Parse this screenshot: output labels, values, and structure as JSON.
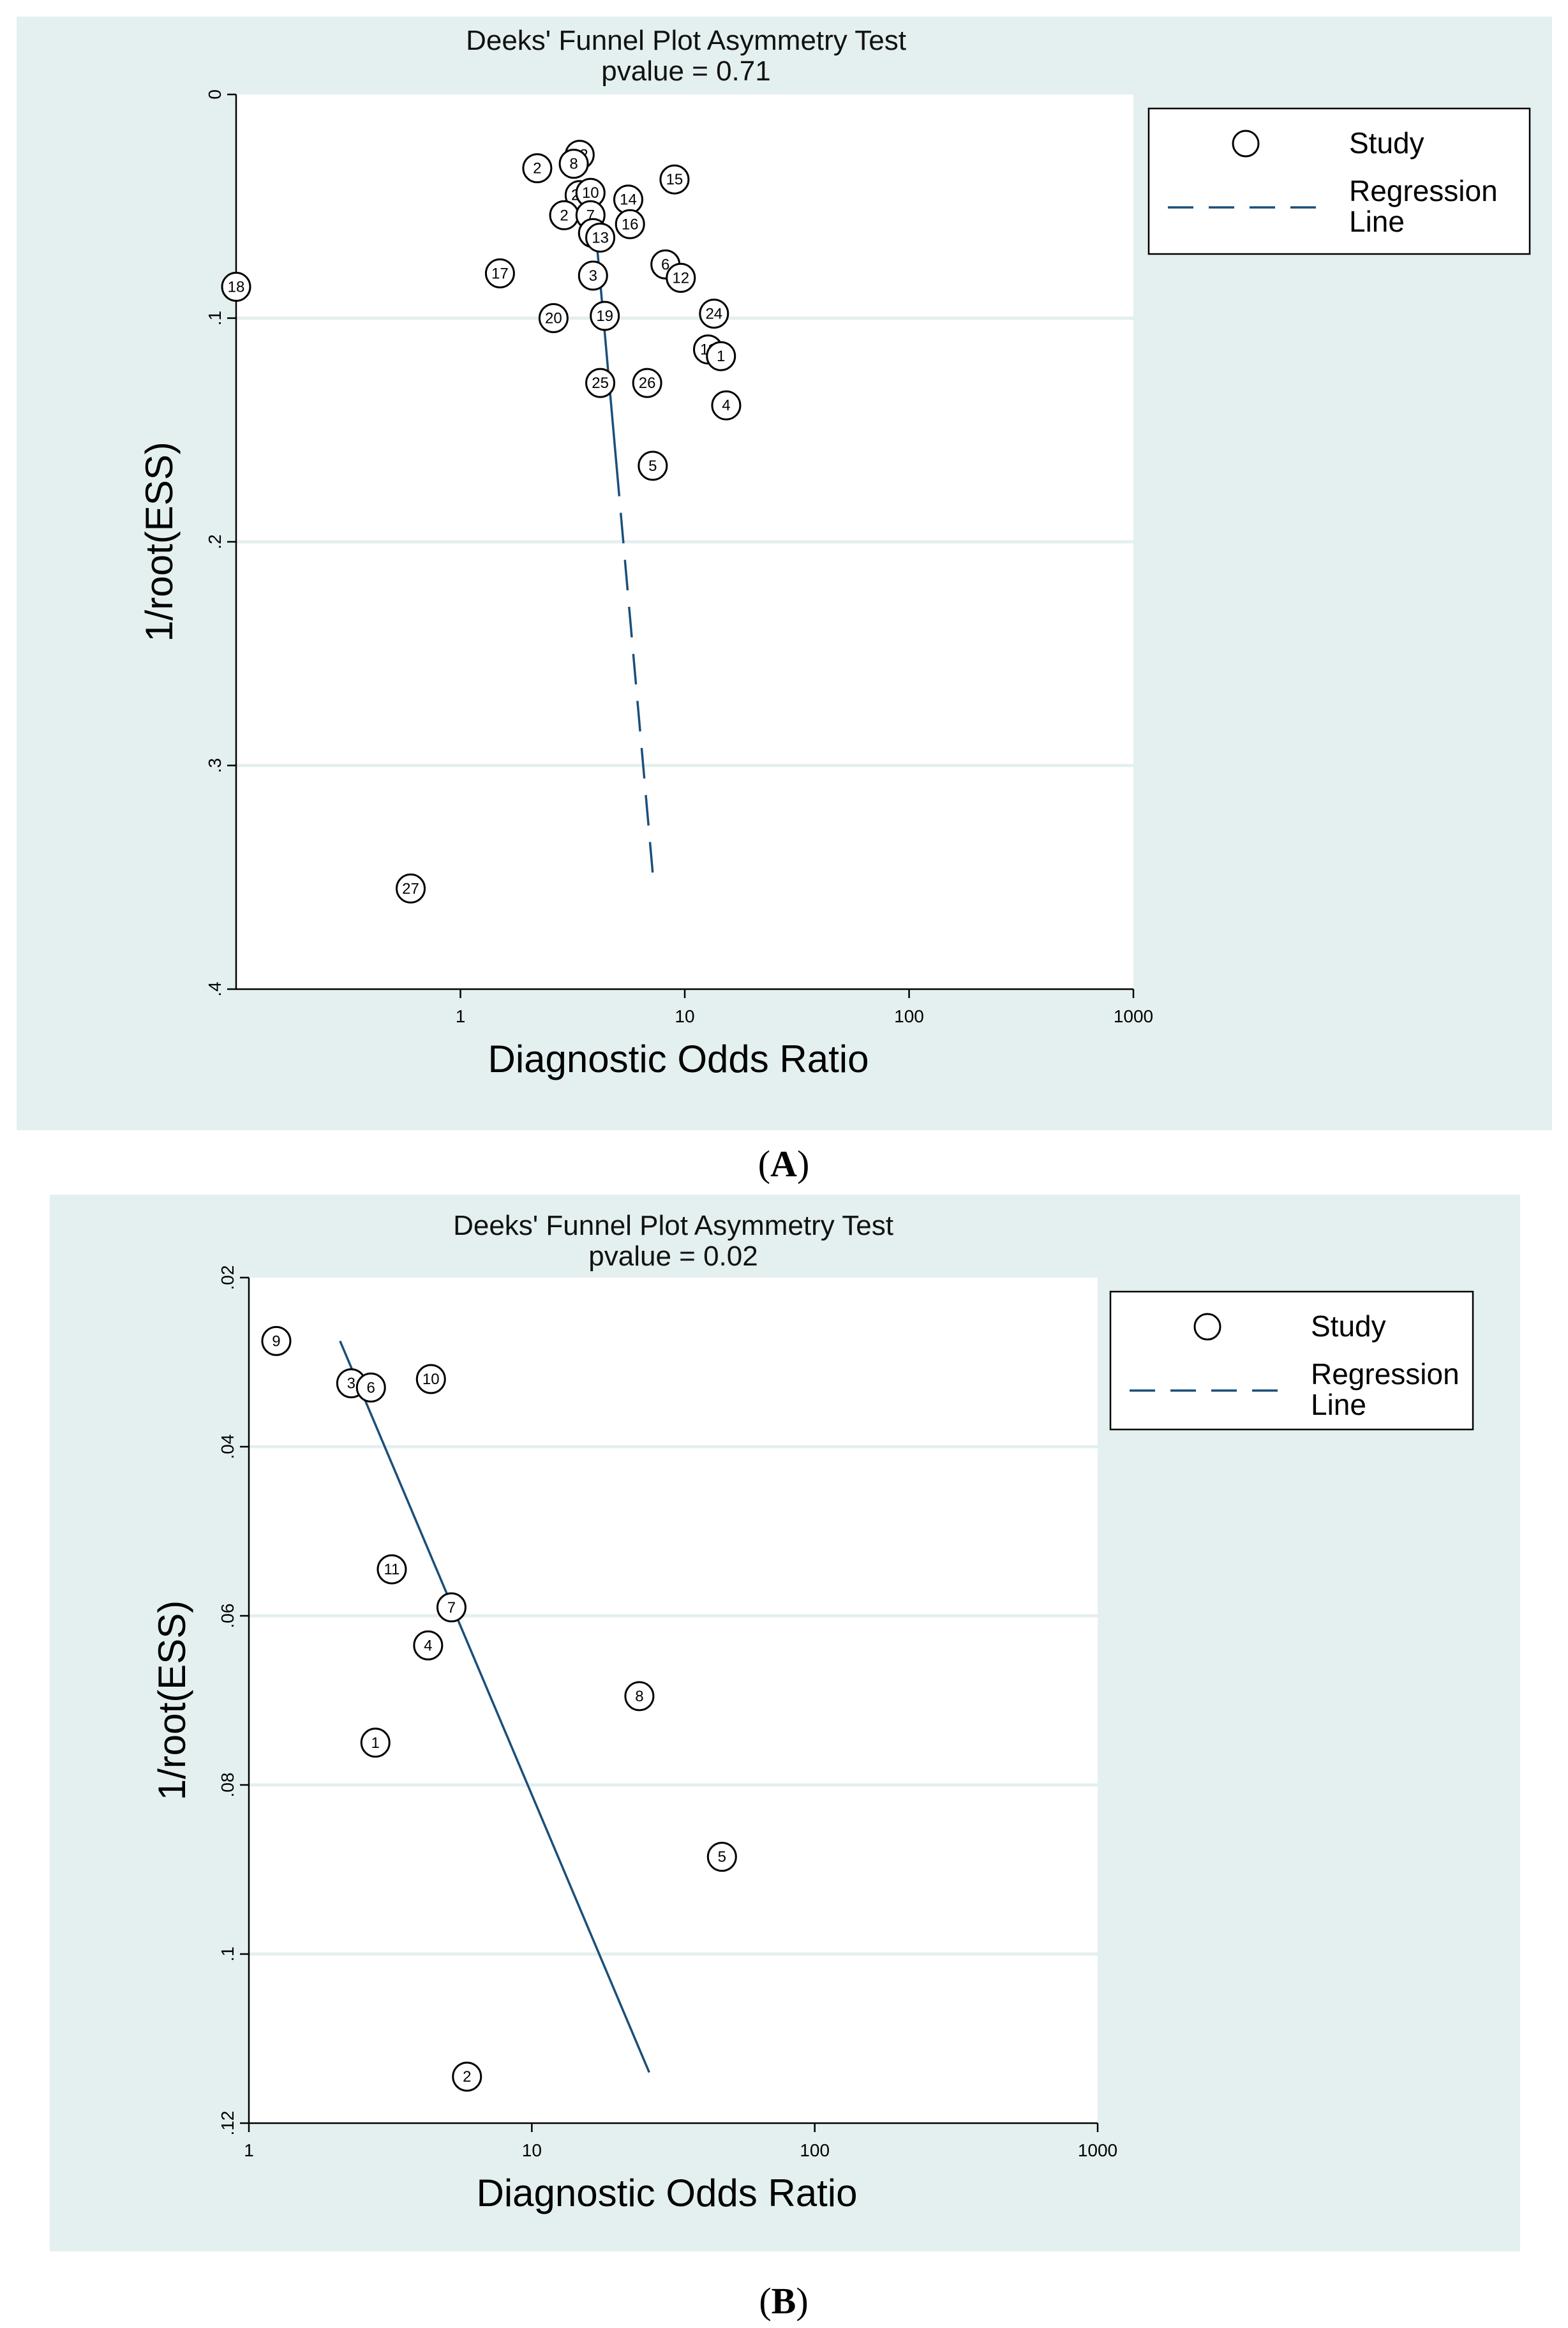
{
  "chart_data": [
    {
      "type": "scatter",
      "panel_label": "A",
      "title": "Deeks' Funnel Plot Asymmetry Test",
      "subtitle_prefix": "pvalue  =",
      "pvalue": "0.71",
      "xlabel": "Diagnostic Odds Ratio",
      "ylabel": "1/root(ESS)",
      "x_scale": "log",
      "xlim": [
        0.1,
        1000
      ],
      "ylim": [
        0,
        0.4
      ],
      "y_inverted": true,
      "x_ticks": [
        {
          "v": 1,
          "label": "1"
        },
        {
          "v": 10,
          "label": "10"
        },
        {
          "v": 100,
          "label": "100"
        },
        {
          "v": 1000,
          "label": "1000"
        }
      ],
      "y_ticks": [
        {
          "v": 0,
          "label": "0"
        },
        {
          "v": 0.1,
          "label": ".1"
        },
        {
          "v": 0.2,
          "label": ".2"
        },
        {
          "v": 0.3,
          "label": ".3"
        },
        {
          "v": 0.4,
          "label": ".4"
        }
      ],
      "gridlines_y": [
        0.1,
        0.2,
        0.3
      ],
      "legend": {
        "position": "top-right",
        "entries": [
          "Study",
          "Regression Line"
        ],
        "study_label": "Study",
        "line_label_1": "Regression",
        "line_label_2": "Line"
      },
      "points": [
        {
          "label": "18",
          "x": 0.1,
          "y": 0.086
        },
        {
          "label": "2",
          "x": 2.2,
          "y": 0.033
        },
        {
          "label": "22",
          "x": 3.4,
          "y": 0.027
        },
        {
          "label": "8",
          "x": 3.2,
          "y": 0.031
        },
        {
          "label": "21",
          "x": 3.4,
          "y": 0.045
        },
        {
          "label": "10",
          "x": 3.8,
          "y": 0.044
        },
        {
          "label": "2",
          "x": 2.9,
          "y": 0.054
        },
        {
          "label": "7",
          "x": 3.8,
          "y": 0.054
        },
        {
          "label": "15",
          "x": 9.0,
          "y": 0.038
        },
        {
          "label": "14",
          "x": 5.6,
          "y": 0.047
        },
        {
          "label": "16",
          "x": 5.7,
          "y": 0.058
        },
        {
          "label": "9",
          "x": 3.9,
          "y": 0.062
        },
        {
          "label": "13",
          "x": 4.2,
          "y": 0.064
        },
        {
          "label": "6",
          "x": 8.2,
          "y": 0.076
        },
        {
          "label": "12",
          "x": 9.6,
          "y": 0.082
        },
        {
          "label": "3",
          "x": 3.9,
          "y": 0.081
        },
        {
          "label": "17",
          "x": 1.5,
          "y": 0.08
        },
        {
          "label": "19",
          "x": 4.4,
          "y": 0.099
        },
        {
          "label": "20",
          "x": 2.6,
          "y": 0.1
        },
        {
          "label": "24",
          "x": 13.5,
          "y": 0.098
        },
        {
          "label": "11",
          "x": 12.7,
          "y": 0.114
        },
        {
          "label": "1",
          "x": 14.5,
          "y": 0.117
        },
        {
          "label": "25",
          "x": 4.2,
          "y": 0.129
        },
        {
          "label": "26",
          "x": 6.8,
          "y": 0.129
        },
        {
          "label": "4",
          "x": 15.3,
          "y": 0.139
        },
        {
          "label": "5",
          "x": 7.2,
          "y": 0.166
        },
        {
          "label": "27",
          "x": 0.6,
          "y": 0.355
        }
      ],
      "regression_line": {
        "x1": 4.0,
        "y1": 0.06,
        "x2": 7.3,
        "y2": 0.355
      },
      "regression_solid_until_y": 0.166
    },
    {
      "type": "scatter",
      "panel_label": "B",
      "title": "Deeks' Funnel Plot Asymmetry Test",
      "subtitle_prefix": "pvalue  =",
      "pvalue": "0.02",
      "xlabel": "Diagnostic Odds Ratio",
      "ylabel": "1/root(ESS)",
      "x_scale": "log",
      "xlim": [
        1,
        1000
      ],
      "ylim": [
        0.02,
        0.12
      ],
      "y_inverted": true,
      "x_ticks": [
        {
          "v": 1,
          "label": "1"
        },
        {
          "v": 10,
          "label": "10"
        },
        {
          "v": 100,
          "label": "100"
        },
        {
          "v": 1000,
          "label": "1000"
        }
      ],
      "y_ticks": [
        {
          "v": 0.02,
          "label": ".02"
        },
        {
          "v": 0.04,
          "label": ".04"
        },
        {
          "v": 0.06,
          "label": ".06"
        },
        {
          "v": 0.08,
          "label": ".08"
        },
        {
          "v": 0.1,
          "label": ".1"
        },
        {
          "v": 0.12,
          "label": ".12"
        }
      ],
      "gridlines_y": [
        0.04,
        0.06,
        0.08,
        0.1
      ],
      "legend": {
        "position": "top-right",
        "entries": [
          "Study",
          "Regression Line"
        ],
        "study_label": "Study",
        "line_label_1": "Regression",
        "line_label_2": "Line"
      },
      "points": [
        {
          "label": "9",
          "x": 1.25,
          "y": 0.0275
        },
        {
          "label": "3",
          "x": 2.3,
          "y": 0.0325
        },
        {
          "label": "6",
          "x": 2.7,
          "y": 0.033
        },
        {
          "label": "10",
          "x": 4.4,
          "y": 0.032
        },
        {
          "label": "11",
          "x": 3.2,
          "y": 0.0545
        },
        {
          "label": "7",
          "x": 5.2,
          "y": 0.059
        },
        {
          "label": "4",
          "x": 4.3,
          "y": 0.0635
        },
        {
          "label": "8",
          "x": 24,
          "y": 0.0695
        },
        {
          "label": "1",
          "x": 2.8,
          "y": 0.075
        },
        {
          "label": "5",
          "x": 47,
          "y": 0.0885
        },
        {
          "label": "2",
          "x": 5.9,
          "y": 0.1145
        }
      ],
      "regression_line": {
        "x1": 2.1,
        "y1": 0.0275,
        "x2": 26,
        "y2": 0.114
      },
      "regression_solid_until_y": 1
    }
  ]
}
